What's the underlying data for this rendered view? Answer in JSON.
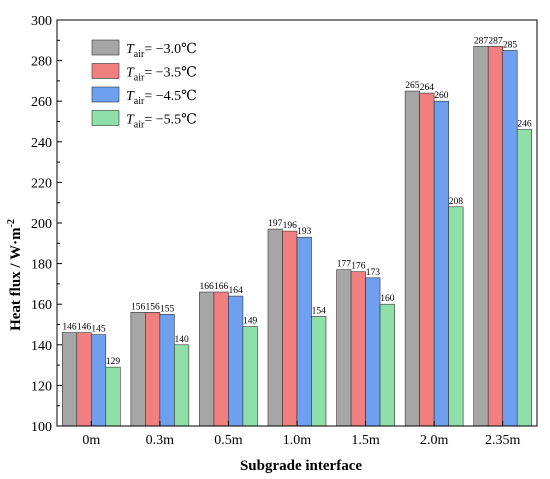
{
  "chart_data": {
    "type": "bar",
    "xlabel": "Subgrade interface",
    "ylabel": "Heat flux / W·m",
    "ylabel_superscript": "-2",
    "categories": [
      "0m",
      "0.3m",
      "0.5m",
      "1.0m",
      "1.5m",
      "2.0m",
      "2.35m"
    ],
    "ylim": [
      100,
      300
    ],
    "yticks": [
      100,
      120,
      140,
      160,
      180,
      200,
      220,
      240,
      260,
      280,
      300
    ],
    "grid": false,
    "legend_position": "top-left",
    "series": [
      {
        "name": "T",
        "subscript": "air",
        "value_text": "= −3.0℃",
        "color": "#a6a6a6",
        "values": [
          146,
          156,
          166,
          197,
          177,
          265,
          287
        ]
      },
      {
        "name": "T",
        "subscript": "air",
        "value_text": "= −3.5℃",
        "color": "#f08080",
        "values": [
          146,
          156,
          166,
          196,
          176,
          264,
          287
        ]
      },
      {
        "name": "T",
        "subscript": "air",
        "value_text": "= −4.5℃",
        "color": "#6fa0f0",
        "values": [
          145,
          155,
          164,
          193,
          173,
          260,
          285
        ]
      },
      {
        "name": "T",
        "subscript": "air",
        "value_text": "= −5.5℃",
        "color": "#8fe0a8",
        "values": [
          129,
          140,
          149,
          154,
          160,
          208,
          246
        ]
      }
    ]
  }
}
